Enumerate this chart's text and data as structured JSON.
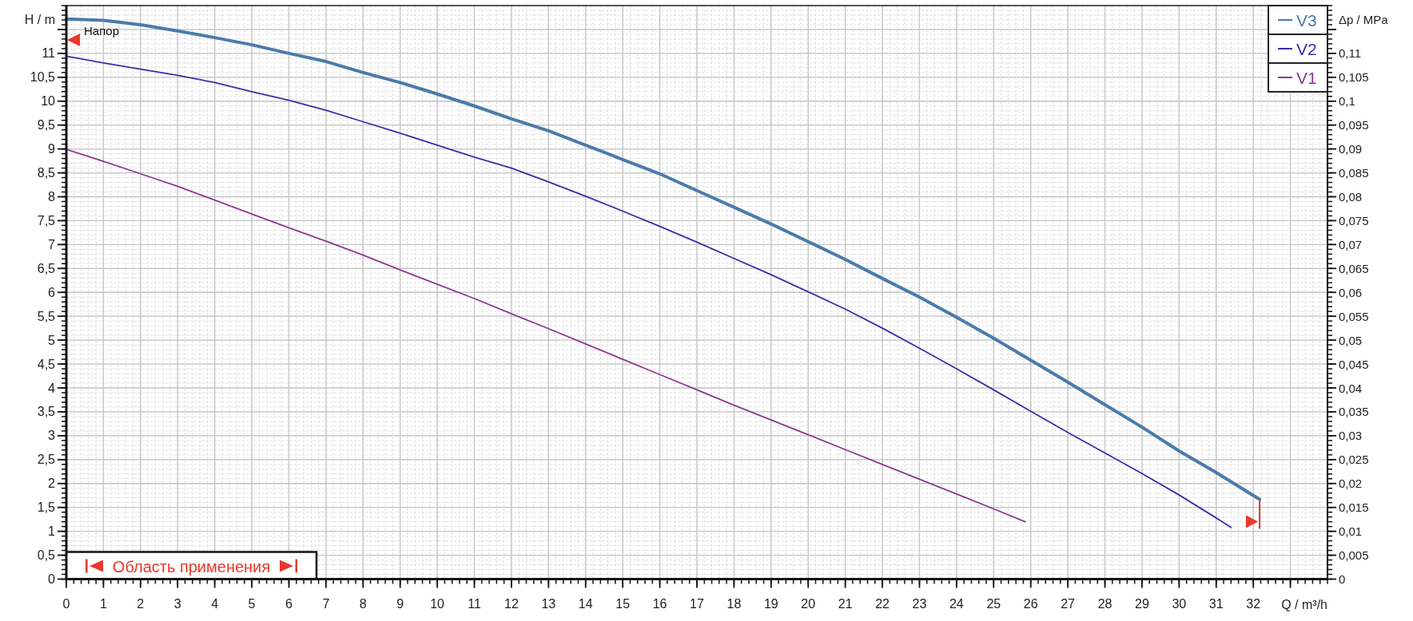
{
  "chart_data": {
    "type": "line",
    "xlabel": "Q / m³/h",
    "ylabel": "H / m",
    "y2label": "Δp / MPa",
    "xlim": [
      0,
      34
    ],
    "xticks": [
      0,
      1,
      2,
      3,
      4,
      5,
      6,
      7,
      8,
      9,
      10,
      11,
      12,
      13,
      14,
      15,
      16,
      17,
      18,
      19,
      20,
      21,
      22,
      23,
      24,
      25,
      26,
      27,
      28,
      29,
      30,
      31,
      32,
      {
        "value": 33,
        "label": null
      }
    ],
    "ylim": [
      0,
      12
    ],
    "yticks": [
      0,
      {
        "value": 0.5,
        "label": "0,5"
      },
      1,
      {
        "value": 1.5,
        "label": "1,5"
      },
      2,
      {
        "value": 2.5,
        "label": "2,5"
      },
      3,
      {
        "value": 3.5,
        "label": "3,5"
      },
      4,
      {
        "value": 4.5,
        "label": "4,5"
      },
      5,
      {
        "value": 5.5,
        "label": "5,5"
      },
      6,
      {
        "value": 6.5,
        "label": "6,5"
      },
      7,
      {
        "value": 7.5,
        "label": "7,5"
      },
      8,
      {
        "value": 8.5,
        "label": "8,5"
      },
      9,
      {
        "value": 9.5,
        "label": "9,5"
      },
      10,
      {
        "value": 10.5,
        "label": "10,5"
      },
      11,
      {
        "value": 11.5,
        "label": null
      }
    ],
    "y2lim": [
      0,
      0.12
    ],
    "y2ticks": [
      0,
      {
        "value": 0.005,
        "label": "0,005"
      },
      {
        "value": 0.01,
        "label": "0,01"
      },
      {
        "value": 0.015,
        "label": "0,015"
      },
      {
        "value": 0.02,
        "label": "0,02"
      },
      {
        "value": 0.025,
        "label": "0,025"
      },
      {
        "value": 0.03,
        "label": "0,03"
      },
      {
        "value": 0.035,
        "label": "0,035"
      },
      {
        "value": 0.04,
        "label": "0,04"
      },
      {
        "value": 0.045,
        "label": "0,045"
      },
      {
        "value": 0.05,
        "label": "0,05"
      },
      {
        "value": 0.055,
        "label": "0,055"
      },
      {
        "value": 0.06,
        "label": "0,06"
      },
      {
        "value": 0.065,
        "label": "0,065"
      },
      {
        "value": 0.07,
        "label": "0,07"
      },
      {
        "value": 0.075,
        "label": "0,075"
      },
      {
        "value": 0.08,
        "label": "0,08"
      },
      {
        "value": 0.085,
        "label": "0,085"
      },
      {
        "value": 0.09,
        "label": "0,09"
      },
      {
        "value": 0.095,
        "label": "0,095"
      },
      {
        "value": 0.1,
        "label": "0,1"
      },
      {
        "value": 0.105,
        "label": "0,105"
      },
      {
        "value": 0.11,
        "label": "0,11"
      },
      {
        "value": 0.115,
        "label": null
      }
    ],
    "grid": true,
    "legend": "top right",
    "annotations": [
      "Напор",
      "Область применения"
    ],
    "series": [
      {
        "name": "V3",
        "color": "#4a7bab",
        "x": [
          0,
          1,
          2,
          3,
          4,
          5,
          6,
          7,
          8,
          9,
          10,
          11,
          12,
          13,
          14,
          15,
          16,
          17,
          18,
          19,
          20,
          21,
          22,
          23,
          24,
          25,
          26,
          27,
          28,
          29,
          30,
          31,
          32,
          32.17
        ],
        "values": [
          11.72,
          11.69,
          11.6,
          11.47,
          11.33,
          11.18,
          11.0,
          10.83,
          10.6,
          10.39,
          10.15,
          9.9,
          9.63,
          9.38,
          9.08,
          8.78,
          8.48,
          8.13,
          7.78,
          7.43,
          7.06,
          6.69,
          6.29,
          5.9,
          5.48,
          5.04,
          4.58,
          4.12,
          3.65,
          3.18,
          2.68,
          2.23,
          1.75,
          1.67
        ]
      },
      {
        "name": "V2",
        "color": "#3a2ea6",
        "x": [
          0,
          1,
          2,
          3,
          4,
          5,
          6,
          7,
          8,
          9,
          10,
          11,
          12,
          13,
          14,
          15,
          16,
          17,
          18,
          19,
          20,
          21,
          22,
          23,
          24,
          25,
          26,
          27,
          28,
          29,
          30,
          31,
          31.4
        ],
        "values": [
          10.94,
          10.8,
          10.67,
          10.54,
          10.39,
          10.2,
          10.02,
          9.81,
          9.57,
          9.33,
          9.08,
          8.83,
          8.6,
          8.31,
          8.01,
          7.7,
          7.38,
          7.05,
          6.71,
          6.37,
          6.01,
          5.65,
          5.25,
          4.83,
          4.4,
          3.96,
          3.51,
          3.07,
          2.64,
          2.21,
          1.76,
          1.28,
          1.08
        ]
      },
      {
        "name": "V1",
        "color": "#8e3a8e",
        "x": [
          0,
          1,
          2,
          3,
          4,
          5,
          6,
          7,
          8,
          9,
          10,
          11,
          12,
          13,
          14,
          15,
          16,
          17,
          18,
          19,
          20,
          21,
          22,
          23,
          24,
          25,
          25.85
        ],
        "values": [
          8.99,
          8.74,
          8.48,
          8.22,
          7.93,
          7.64,
          7.35,
          7.07,
          6.78,
          6.47,
          6.17,
          5.87,
          5.55,
          5.24,
          4.92,
          4.6,
          4.28,
          3.96,
          3.64,
          3.33,
          3.02,
          2.71,
          2.4,
          2.09,
          1.78,
          1.47,
          1.2
        ]
      }
    ]
  }
}
